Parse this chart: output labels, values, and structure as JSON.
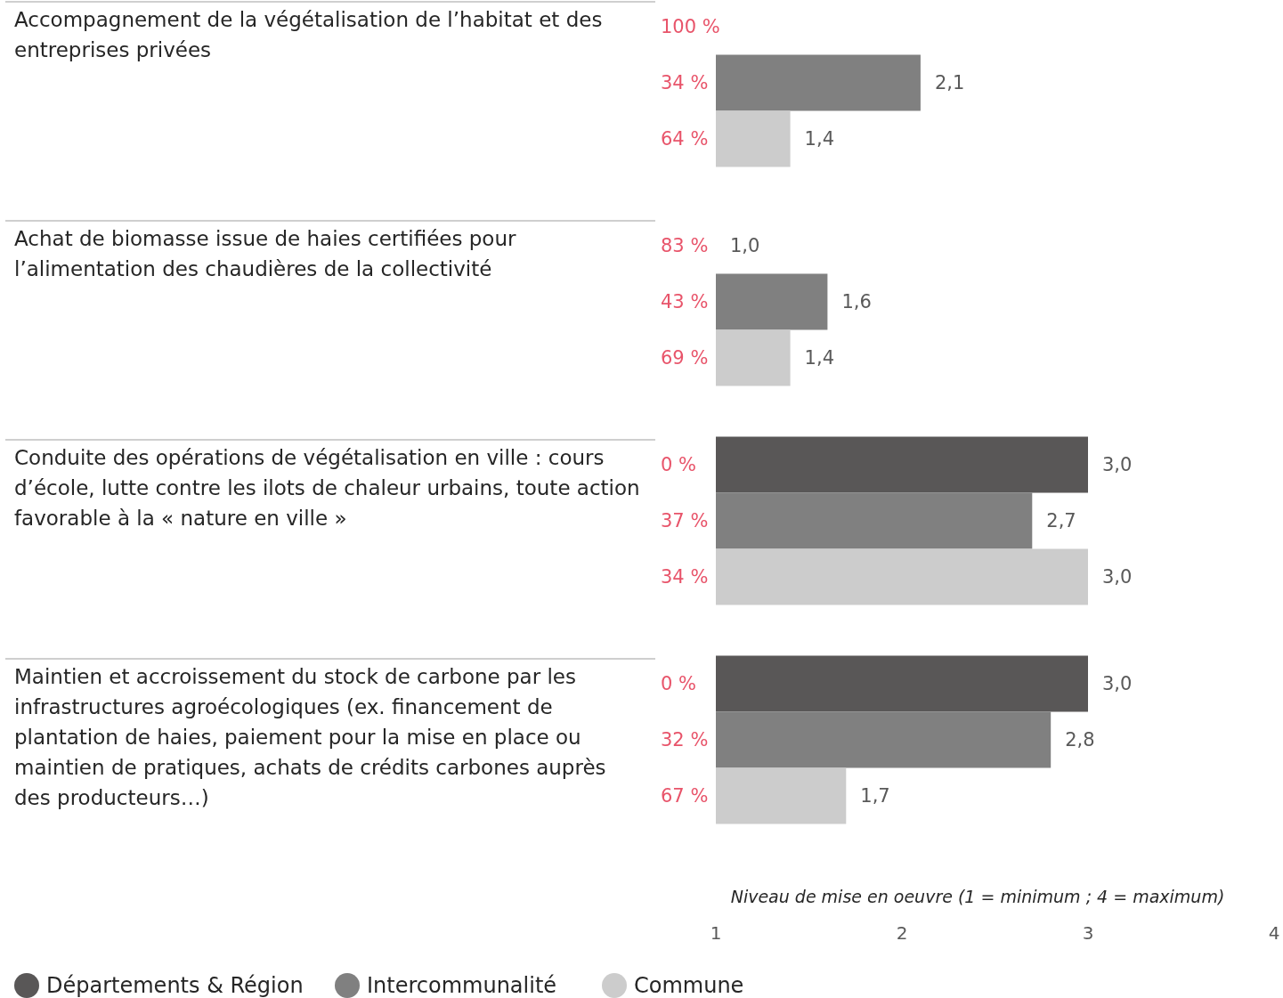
{
  "chart_data": {
    "type": "bar",
    "orientation": "horizontal",
    "xlabel": "Niveau de mise en oeuvre (1 = minimum ; 4 = maximum)",
    "categories": [
      "Accompagnement de la végétalisation de l’habitat et des entreprises privées",
      "Achat de biomasse issue de haies certifiées pour l’alimentation des chaudières de la collectivité",
      "Conduite des opérations de végétalisation en ville : cours d’école, lutte contre les ilots de chaleur urbains, toute action favorable à la « nature en ville »",
      "Maintien et accroissement du stock de carbone par les infrastructures agroécologiques (ex. financement de plantation de haies, paiement pour la mise en place ou maintien de pratiques, achats de crédits carbones auprès des producteurs…)"
    ],
    "series": [
      {
        "name": "Départements & Région",
        "color": "#595757",
        "values": [
          null,
          1.0,
          3.0,
          3.0
        ],
        "value_labels": [
          null,
          "1,0",
          "3,0",
          "3,0"
        ]
      },
      {
        "name": "Intercommunalité",
        "color": "#808080",
        "values": [
          2.1,
          1.6,
          2.7,
          2.8
        ],
        "value_labels": [
          "2,1",
          "1,6",
          "2,7",
          "2,8"
        ]
      },
      {
        "name": "Commune",
        "color": "#cccccc",
        "values": [
          1.4,
          1.4,
          3.0,
          1.7
        ],
        "value_labels": [
          "1,4",
          "1,4",
          "3,0",
          "1,7"
        ]
      }
    ],
    "annotations": [
      "100 %",
      "34 %",
      "64 %",
      "83 %",
      "43 %",
      "69 %",
      "0 %",
      "37 %",
      "34 %",
      "0 %",
      "32 %",
      "67 %"
    ],
    "xlim": [
      1,
      4
    ],
    "xticks": [
      1,
      2,
      3,
      4
    ],
    "legend": "bottom left"
  }
}
